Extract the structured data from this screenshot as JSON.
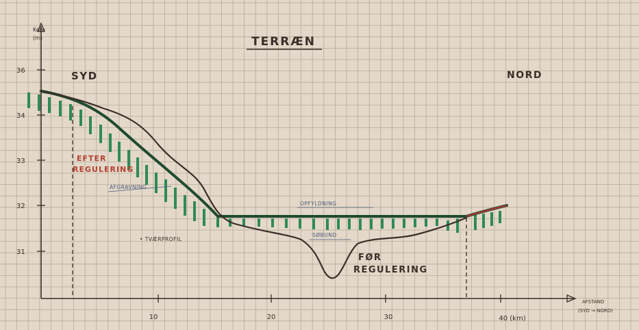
{
  "title": "TERRÆN",
  "y_axis_label": [
    "Kote",
    "(m)"
  ],
  "y_ticks": [
    "36",
    "34",
    "33",
    "32",
    "31"
  ],
  "x_ticks": [
    "10",
    "20",
    "30",
    "40 (km)"
  ],
  "x_axis_label": [
    "AFSTAND",
    "(SYD → NORD)"
  ],
  "label_south": "SYD",
  "label_north": "NORD",
  "label_after": [
    "EFTER",
    "REGULERING"
  ],
  "label_before": [
    "FØR",
    "REGULERING"
  ],
  "label_cut": "AFGRAVNING",
  "label_fill": "OPFYLDNING",
  "label_lake": "SØBUND",
  "label_cross": "• TVÆRPROFIL",
  "colors": {
    "paper": "#e3d8c9",
    "grid": "#b9ab98",
    "ink": "#3a2e28",
    "after_line": "#1f4a30",
    "hatch": "#2f8a57",
    "red_text": "#b3402f",
    "red_line": "#a33a33"
  }
}
